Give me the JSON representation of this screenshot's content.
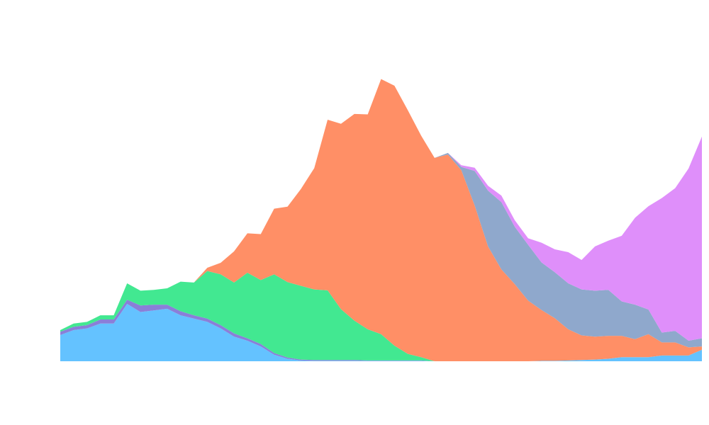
{
  "chart_data": {
    "type": "area",
    "stacked": true,
    "grid": false,
    "legend": "none",
    "x": [
      0,
      1,
      2,
      3,
      4,
      5,
      6,
      7,
      8,
      9,
      10,
      11,
      12,
      13,
      14,
      15,
      16,
      17,
      18,
      19,
      20,
      21,
      22,
      23,
      24,
      25,
      26,
      27,
      28,
      29,
      30,
      31,
      32,
      33,
      34,
      35,
      36,
      37,
      38,
      39,
      40,
      41,
      42,
      43,
      44,
      45,
      46,
      47,
      48
    ],
    "xlim": [
      0,
      48
    ],
    "ylim": [
      0,
      380
    ],
    "series": [
      {
        "color": "#64c2ff",
        "values": [
          32,
          38,
          40,
          46,
          46,
          70,
          60,
          62,
          64,
          56,
          52,
          48,
          40,
          30,
          25,
          18,
          8,
          3,
          1,
          0.5,
          0.5,
          0.5,
          0.5,
          0.5,
          0.5,
          0.5,
          0.5,
          0.5,
          0,
          0,
          0,
          0,
          0,
          0,
          0,
          0,
          0.5,
          0.5,
          1,
          1.5,
          2,
          3,
          5,
          5,
          5,
          7,
          7,
          7,
          14
        ]
      },
      {
        "color": "#8a7fd8",
        "values": [
          4,
          4,
          4,
          5,
          5,
          5,
          8,
          7,
          5,
          5,
          4,
          4,
          4,
          4,
          3,
          3,
          2,
          1.5,
          1,
          1,
          1,
          1,
          1,
          0.5,
          0.5,
          0.5,
          0.5,
          0.5,
          0,
          0,
          0,
          0,
          0,
          0,
          0,
          0,
          0,
          0,
          0,
          0,
          0,
          0,
          0,
          0,
          0,
          0,
          0,
          0,
          0
        ]
      },
      {
        "color": "#42e891",
        "values": [
          2,
          4,
          4,
          5,
          5,
          20,
          18,
          18,
          20,
          36,
          40,
          58,
          62,
          62,
          80,
          78,
          96,
          92,
          90,
          86,
          85,
          62,
          48,
          38,
          32,
          18,
          8,
          4,
          0,
          0,
          0,
          0,
          0,
          0,
          0,
          0,
          0,
          0,
          0,
          0,
          0,
          0,
          0,
          0,
          0,
          0,
          0,
          0,
          0
        ]
      },
      {
        "color": "#ff8f66",
        "values": [
          0,
          0,
          0,
          0,
          0,
          0,
          0,
          0,
          0,
          0,
          0,
          4,
          14,
          38,
          48,
          56,
          80,
          92,
          118,
          148,
          208,
          226,
          252,
          262,
          311,
          317,
          297,
          270,
          248,
          252,
          233,
          190,
          140,
          112,
          94,
          74,
          62,
          52,
          38,
          30,
          28,
          28,
          26,
          22,
          28,
          16,
          16,
          10,
          4
        ]
      },
      {
        "color": "#8fa8cc",
        "values": [
          0,
          0,
          0,
          0,
          0,
          0,
          0,
          0,
          0,
          0,
          0,
          0,
          0,
          0,
          0,
          0,
          0,
          0,
          0,
          0,
          0,
          0,
          0,
          0,
          0,
          0,
          0,
          0,
          0,
          2,
          4,
          42,
          68,
          82,
          70,
          68,
          58,
          56,
          56,
          56,
          56,
          56,
          42,
          42,
          30,
          12,
          14,
          8,
          10
        ]
      },
      {
        "color": "#df8ffa",
        "values": [
          0,
          0,
          0,
          0,
          0,
          0,
          0,
          0,
          0,
          0,
          0,
          0,
          0,
          0,
          0,
          0,
          0,
          0,
          0,
          0,
          0,
          0,
          0,
          0,
          0,
          0,
          0,
          0,
          0,
          0,
          2,
          4,
          6,
          8,
          8,
          8,
          24,
          28,
          38,
          36,
          54,
          60,
          80,
          106,
          126,
          164,
          174,
          210,
          246
        ]
      }
    ]
  }
}
